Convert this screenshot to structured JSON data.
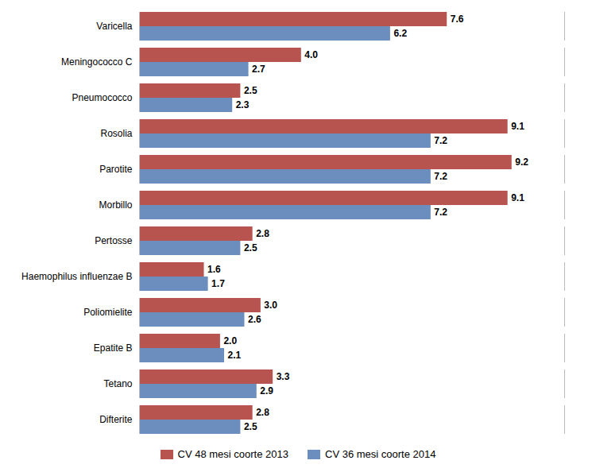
{
  "chart_data": {
    "type": "bar",
    "orientation": "horizontal",
    "categories": [
      "Varicella",
      "Meningococco C",
      "Pneumococco",
      "Rosolia",
      "Parotite",
      "Morbillo",
      "Pertosse",
      "Haemophilus influenzae B",
      "Poliomielite",
      "Epatite B",
      "Tetano",
      "Difterite"
    ],
    "series": [
      {
        "name": "CV 48 mesi coorte 2013",
        "color": "#b85450",
        "values": [
          7.6,
          4.0,
          2.5,
          9.1,
          9.2,
          9.1,
          2.8,
          1.6,
          3.0,
          2.0,
          3.3,
          2.8
        ],
        "value_labels": [
          "7.6",
          "4.0",
          "2.5",
          "9.1",
          "9.2",
          "9.1",
          "2.8",
          "1.6",
          "3.0",
          "2.0",
          "3.3",
          "2.8"
        ]
      },
      {
        "name": "CV 36 mesi coorte 2014",
        "color": "#6c8ebf",
        "values": [
          6.2,
          2.7,
          2.3,
          7.2,
          7.2,
          7.2,
          2.5,
          1.7,
          2.6,
          2.1,
          2.9,
          2.5
        ],
        "value_labels": [
          "6.2",
          "2.7",
          "2.3",
          "7.2",
          "7.2",
          "7.2",
          "2.5",
          "1.7",
          "2.6",
          "2.1",
          "2.9",
          "2.5"
        ]
      }
    ],
    "xlim": [
      0,
      10.5
    ],
    "xticks": [],
    "tick_labels": "y",
    "data_labels": true,
    "legend": "bottom",
    "grid": false
  }
}
